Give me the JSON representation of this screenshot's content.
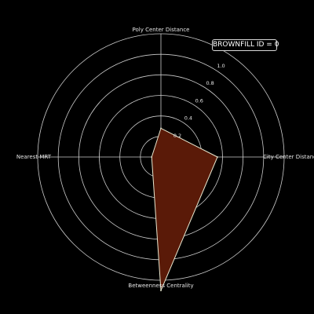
{
  "annotation": {
    "text": "BROWNFILL ID =  0"
  },
  "chart_data": {
    "type": "radar",
    "axes": [
      "City Center Distance",
      "Poly Center Distance",
      "Nearest MRT",
      "Betweenness Centrality"
    ],
    "series": [
      {
        "values": [
          0.55,
          0.28,
          0.09,
          1.3
        ]
      }
    ],
    "rlim": [
      0,
      1.2
    ],
    "rticks": [
      0.2,
      0.4,
      0.6,
      0.8,
      1.0
    ],
    "rtick_labels": [
      "0.2",
      "0.4",
      "0.6",
      "0.8",
      "1.0"
    ],
    "grid": true,
    "colors": {
      "background": "#000000",
      "grid": "#cccccc",
      "fill": "#5a1a08",
      "edge": "#e8e8d0",
      "text": "#e6e6e6"
    }
  }
}
